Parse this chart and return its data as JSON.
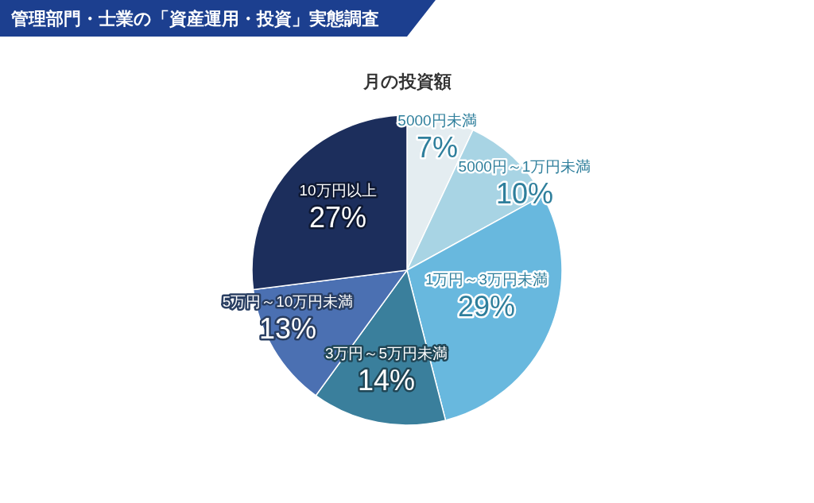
{
  "chart_data": {
    "type": "pie",
    "title": "管理部門・士業の「資産運用・投資」実態調査",
    "subtitle": "月の投資額",
    "categories": [
      "5000円未満",
      "5000円～1万円未満",
      "1万円～3万円未満",
      "3万円～5万円未満",
      "5万円～10万円未満",
      "10万円以上"
    ],
    "values": [
      7,
      10,
      29,
      14,
      13,
      27
    ],
    "value_labels": [
      "7%",
      "10%",
      "29%",
      "14%",
      "13%",
      "27%"
    ],
    "colors": [
      "#e4edf1",
      "#a8d4e4",
      "#68b8de",
      "#3a7f9c",
      "#4b70b2",
      "#1c2e5c"
    ],
    "legend": false
  }
}
